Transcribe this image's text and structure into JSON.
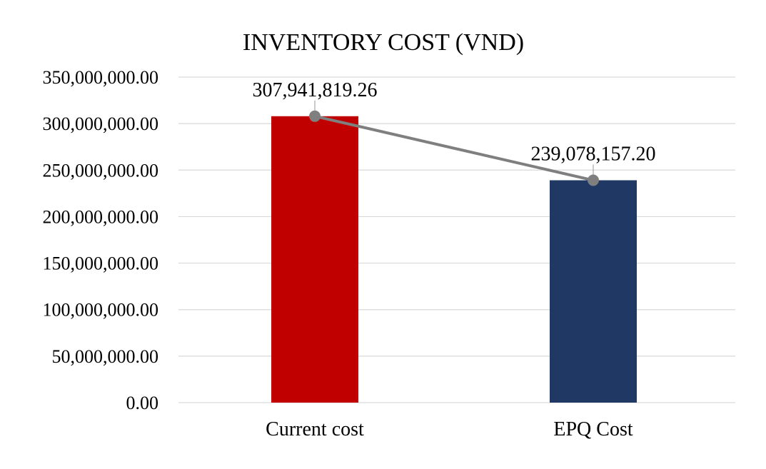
{
  "chart_data": {
    "type": "bar",
    "title": "INVENTORY COST (VND)",
    "xlabel": "",
    "ylabel": "",
    "categories": [
      "Current cost",
      "EPQ Cost"
    ],
    "series": [
      {
        "type": "bar",
        "values": [
          307941819.26,
          239078157.2
        ],
        "colors": [
          "#c00000",
          "#203864"
        ]
      },
      {
        "type": "line",
        "values": [
          307941819.26,
          239078157.2
        ],
        "color": "#7f7f7f"
      }
    ],
    "data_labels": [
      "307,941,819.26",
      "239,078,157.20"
    ],
    "ylim": [
      0,
      350000000
    ],
    "y_ticks": [
      0,
      50000000,
      100000000,
      150000000,
      200000000,
      250000000,
      300000000,
      350000000
    ],
    "y_tick_labels": [
      "0.00",
      "50,000,000.00",
      "100,000,000.00",
      "150,000,000.00",
      "200,000,000.00",
      "250,000,000.00",
      "300,000,000.00",
      "350,000,000.00"
    ],
    "grid": true,
    "legend": "none"
  }
}
